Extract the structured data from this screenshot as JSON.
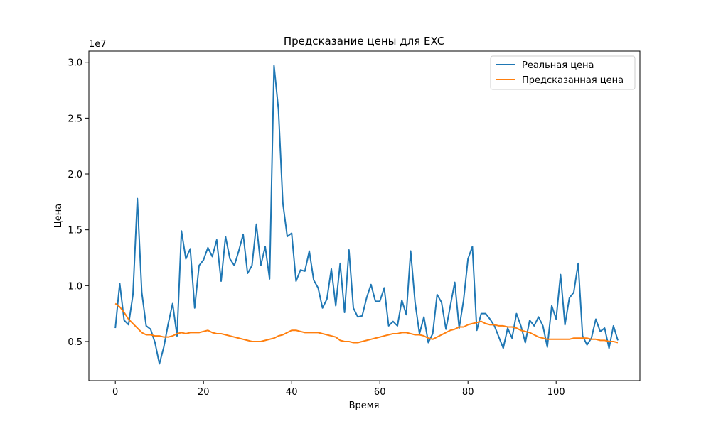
{
  "chart_data": {
    "type": "line",
    "title": "Предсказание цены для EXC",
    "xlabel": "Время",
    "ylabel": "Цена",
    "y_multiplier_label": "1e7",
    "xlim": [
      -6,
      119
    ],
    "ylim": [
      1.5,
      31.0
    ],
    "x_ticks": [
      0,
      20,
      40,
      60,
      80,
      100
    ],
    "x_tick_labels": [
      "0",
      "20",
      "40",
      "60",
      "80",
      "100"
    ],
    "y_ticks": [
      5,
      10,
      15,
      20,
      25,
      30
    ],
    "y_tick_labels": [
      "0.5",
      "1.0",
      "1.5",
      "2.0",
      "2.5",
      "3.0"
    ],
    "grid": false,
    "legend_position": "top-right",
    "series": [
      {
        "name": "Реальная цена",
        "color": "#1f77b4",
        "values": [
          6.2,
          10.2,
          6.9,
          6.5,
          9.2,
          17.8,
          9.4,
          6.4,
          6.1,
          4.9,
          3.0,
          4.5,
          6.6,
          8.4,
          5.5,
          14.9,
          12.4,
          13.3,
          8.0,
          11.8,
          12.3,
          13.4,
          12.6,
          14.1,
          10.4,
          14.4,
          12.4,
          11.8,
          13.1,
          14.6,
          11.1,
          11.8,
          15.5,
          11.8,
          13.5,
          10.6,
          29.7,
          25.8,
          17.4,
          14.4,
          14.7,
          10.4,
          11.4,
          11.3,
          13.1,
          10.5,
          9.8,
          8.0,
          8.8,
          11.5,
          8.2,
          12.0,
          7.6,
          13.2,
          8.0,
          7.2,
          7.3,
          8.9,
          10.1,
          8.6,
          8.6,
          9.8,
          6.4,
          6.8,
          6.4,
          8.7,
          7.4,
          13.1,
          8.5,
          5.7,
          7.2,
          4.9,
          5.7,
          9.2,
          8.5,
          6.1,
          8.2,
          10.3,
          6.2,
          8.7,
          12.4,
          13.5,
          6.0,
          7.5,
          7.5,
          7.0,
          6.4,
          5.4,
          4.4,
          6.2,
          5.3,
          7.5,
          6.4,
          4.9,
          6.9,
          6.4,
          7.2,
          6.4,
          4.5,
          8.2,
          7.0,
          11.0,
          6.5,
          8.9,
          9.4,
          12.0,
          5.5,
          4.7,
          5.3,
          7.0,
          5.9,
          6.2,
          4.4,
          6.4,
          5.1
        ]
      },
      {
        "name": "Предсказанная цена",
        "color": "#ff7f0e",
        "values": [
          8.4,
          8.1,
          7.6,
          7.0,
          6.6,
          6.2,
          5.8,
          5.6,
          5.6,
          5.5,
          5.5,
          5.4,
          5.4,
          5.5,
          5.7,
          5.8,
          5.7,
          5.8,
          5.8,
          5.8,
          5.9,
          6.0,
          5.8,
          5.7,
          5.7,
          5.6,
          5.5,
          5.4,
          5.3,
          5.2,
          5.1,
          5.0,
          5.0,
          5.0,
          5.1,
          5.2,
          5.3,
          5.5,
          5.6,
          5.8,
          6.0,
          6.0,
          5.9,
          5.8,
          5.8,
          5.8,
          5.8,
          5.7,
          5.6,
          5.5,
          5.4,
          5.1,
          5.0,
          5.0,
          4.9,
          4.9,
          5.0,
          5.1,
          5.2,
          5.3,
          5.4,
          5.5,
          5.6,
          5.7,
          5.7,
          5.8,
          5.8,
          5.7,
          5.6,
          5.6,
          5.5,
          5.3,
          5.2,
          5.4,
          5.6,
          5.8,
          6.0,
          6.1,
          6.3,
          6.3,
          6.5,
          6.6,
          6.7,
          6.8,
          6.6,
          6.5,
          6.5,
          6.4,
          6.4,
          6.3,
          6.3,
          6.2,
          6.0,
          5.9,
          5.8,
          5.6,
          5.4,
          5.3,
          5.2,
          5.2,
          5.2,
          5.2,
          5.2,
          5.2,
          5.3,
          5.3,
          5.3,
          5.3,
          5.2,
          5.2,
          5.1,
          5.1,
          5.0,
          5.0,
          4.9
        ]
      }
    ]
  }
}
